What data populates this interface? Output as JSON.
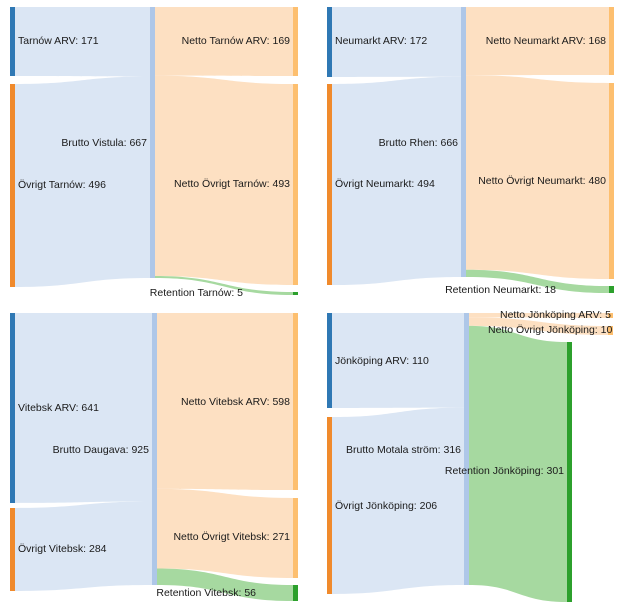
{
  "chart_data": [
    {
      "type": "sankey",
      "nodes": [
        {
          "id": "a",
          "label": "Tarnów ARV: 171",
          "value": 171,
          "color": "#2f78b4",
          "col": 0
        },
        {
          "id": "b",
          "label": "Övrigt Tarnów: 496",
          "value": 496,
          "color": "#f08a2c",
          "col": 0
        },
        {
          "id": "m",
          "label": "Brutto Vistula: 667",
          "value": 667,
          "color": "#aec7e8",
          "col": 1
        },
        {
          "id": "c",
          "label": "Netto Tarnów ARV: 169",
          "value": 169,
          "color": "#fdbf6f",
          "col": 2
        },
        {
          "id": "d",
          "label": "Netto Övrigt Tarnów: 493",
          "value": 493,
          "color": "#fdbf6f",
          "col": 2
        },
        {
          "id": "e",
          "label": "Retention Tarnów: 5",
          "value": 5,
          "color": "#2ca02c",
          "col": 2
        }
      ],
      "links": [
        {
          "source": "a",
          "target": "m",
          "value": 171
        },
        {
          "source": "b",
          "target": "m",
          "value": 496
        },
        {
          "source": "m",
          "target": "c",
          "value": 169
        },
        {
          "source": "m",
          "target": "d",
          "value": 493
        },
        {
          "source": "m",
          "target": "e",
          "value": 5
        }
      ]
    },
    {
      "type": "sankey",
      "nodes": [
        {
          "id": "a",
          "label": "Neumarkt ARV: 172",
          "value": 172,
          "color": "#2f78b4",
          "col": 0
        },
        {
          "id": "b",
          "label": "Övrigt Neumarkt: 494",
          "value": 494,
          "color": "#f08a2c",
          "col": 0
        },
        {
          "id": "m",
          "label": "Brutto Rhen: 666",
          "value": 666,
          "color": "#aec7e8",
          "col": 1
        },
        {
          "id": "c",
          "label": "Netto Neumarkt ARV: 168",
          "value": 168,
          "color": "#fdbf6f",
          "col": 2
        },
        {
          "id": "d",
          "label": "Netto Övrigt Neumarkt: 480",
          "value": 480,
          "color": "#fdbf6f",
          "col": 2
        },
        {
          "id": "e",
          "label": "Retention Neumarkt: 18",
          "value": 18,
          "color": "#2ca02c",
          "col": 2
        }
      ],
      "links": [
        {
          "source": "a",
          "target": "m",
          "value": 172
        },
        {
          "source": "b",
          "target": "m",
          "value": 494
        },
        {
          "source": "m",
          "target": "c",
          "value": 168
        },
        {
          "source": "m",
          "target": "d",
          "value": 480
        },
        {
          "source": "m",
          "target": "e",
          "value": 18
        }
      ]
    },
    {
      "type": "sankey",
      "nodes": [
        {
          "id": "a",
          "label": "Vitebsk ARV: 641",
          "value": 641,
          "color": "#2f78b4",
          "col": 0
        },
        {
          "id": "b",
          "label": "Övrigt Vitebsk: 284",
          "value": 284,
          "color": "#f08a2c",
          "col": 0
        },
        {
          "id": "m",
          "label": "Brutto Daugava: 925",
          "value": 925,
          "color": "#aec7e8",
          "col": 1
        },
        {
          "id": "c",
          "label": "Netto Vitebsk ARV: 598",
          "value": 598,
          "color": "#fdbf6f",
          "col": 2
        },
        {
          "id": "d",
          "label": "Netto Övrigt Vitebsk: 271",
          "value": 271,
          "color": "#fdbf6f",
          "col": 2
        },
        {
          "id": "e",
          "label": "Retention Vitebsk: 56",
          "value": 56,
          "color": "#2ca02c",
          "col": 2
        }
      ],
      "links": [
        {
          "source": "a",
          "target": "m",
          "value": 641
        },
        {
          "source": "b",
          "target": "m",
          "value": 284
        },
        {
          "source": "m",
          "target": "c",
          "value": 598
        },
        {
          "source": "m",
          "target": "d",
          "value": 271
        },
        {
          "source": "m",
          "target": "e",
          "value": 56
        }
      ]
    },
    {
      "type": "sankey",
      "nodes": [
        {
          "id": "a",
          "label": "Jönköping ARV: 110",
          "value": 110,
          "color": "#2f78b4",
          "col": 0
        },
        {
          "id": "b",
          "label": "Övrigt Jönköping: 206",
          "value": 206,
          "color": "#f08a2c",
          "col": 0
        },
        {
          "id": "m",
          "label": "Brutto Motala ström: 316",
          "value": 316,
          "color": "#aec7e8",
          "col": 1
        },
        {
          "id": "c",
          "label": "Netto Jönköping ARV: 5",
          "value": 5,
          "color": "#fdbf6f",
          "col": 2
        },
        {
          "id": "d",
          "label": "Netto Övrigt Jönköping: 10",
          "value": 10,
          "color": "#fdbf6f",
          "col": 2
        },
        {
          "id": "e",
          "label": "Retention Jönköping: 301",
          "value": 301,
          "color": "#2ca02c",
          "col": 2
        }
      ],
      "links": [
        {
          "source": "a",
          "target": "m",
          "value": 110
        },
        {
          "source": "b",
          "target": "m",
          "value": 206
        },
        {
          "source": "m",
          "target": "c",
          "value": 5
        },
        {
          "source": "m",
          "target": "d",
          "value": 10
        },
        {
          "source": "m",
          "target": "e",
          "value": 301
        }
      ]
    }
  ],
  "link_colors": {
    "a": "#dbe6f4",
    "b": "#dbe6f4",
    "c": "#fde0c2",
    "d": "#fde0c2",
    "e": "#a6d9a0"
  }
}
